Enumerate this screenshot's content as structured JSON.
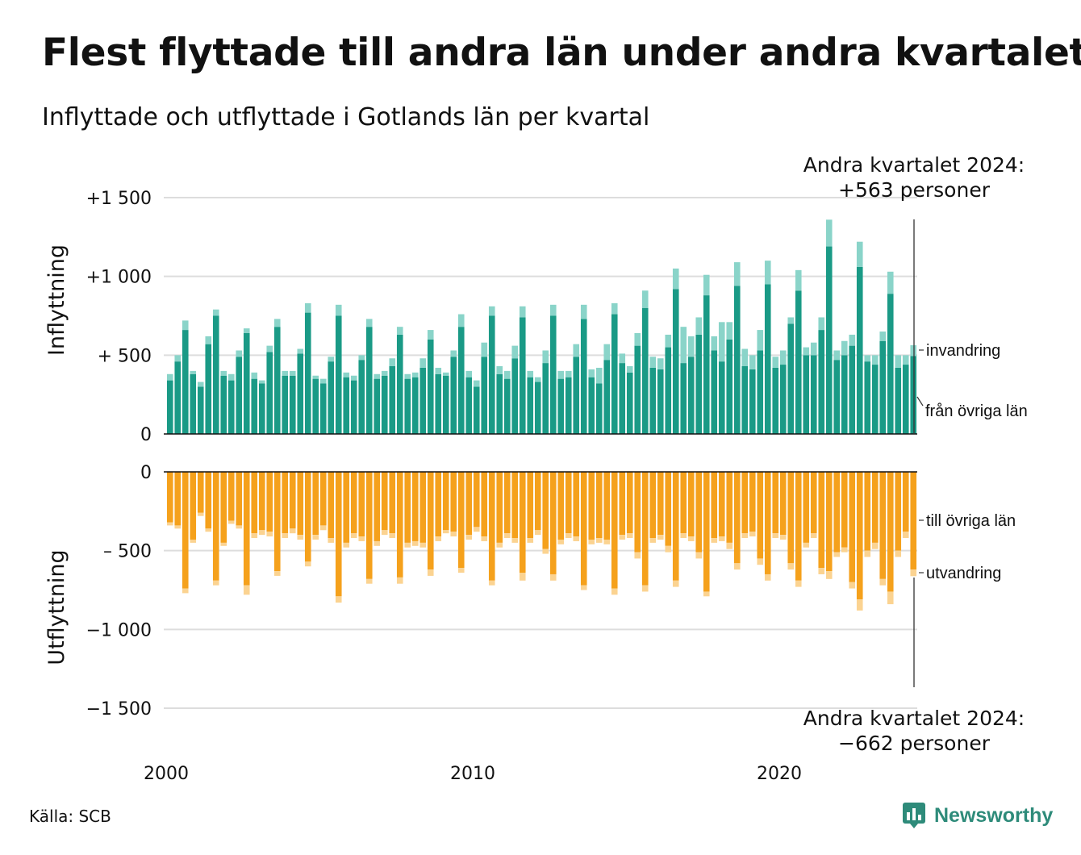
{
  "title": "Flest flyttade till andra län under andra kvartalet",
  "subtitle": "Inflyttade och utflyttade i Gotlands län per kvartal",
  "source": "Källa: SCB",
  "brand": "Newsworthy",
  "colors": {
    "in_lan": "#1a9a86",
    "in_invandring": "#8ad4c9",
    "out_lan": "#f5a11c",
    "out_utvandring": "#fbd391",
    "grid": "#dddddd",
    "brand": "#2e8b7a"
  },
  "chart_data": [
    {
      "type": "bar",
      "stacked": true,
      "ylabel": "Inflyttning",
      "ylim": [
        0,
        1500
      ],
      "yticks": [
        0,
        500,
        1000,
        1500
      ],
      "ytick_labels": [
        "0",
        "+  500",
        "+1 000",
        "+1 500"
      ],
      "xticks": [
        2000,
        2010,
        2020
      ],
      "x_start": "2000 Q1",
      "x_end": "2024 Q2",
      "series_labels": [
        "invandring",
        "från övriga län"
      ],
      "annotation": [
        "Andra kvartalet 2024:",
        "+563 personer"
      ],
      "series": [
        {
          "name": "från övriga län",
          "values": [
            340,
            460,
            660,
            380,
            300,
            570,
            750,
            370,
            340,
            490,
            640,
            350,
            320,
            520,
            680,
            370,
            370,
            510,
            770,
            350,
            320,
            460,
            750,
            360,
            340,
            470,
            680,
            350,
            370,
            430,
            630,
            350,
            360,
            420,
            600,
            380,
            370,
            490,
            680,
            360,
            300,
            490,
            750,
            380,
            350,
            480,
            740,
            360,
            330,
            450,
            750,
            350,
            360,
            490,
            730,
            360,
            320,
            470,
            760,
            450,
            390,
            560,
            800,
            420,
            410,
            550,
            920,
            450,
            490,
            630,
            880,
            530,
            460,
            600,
            940,
            430,
            410,
            530,
            950,
            420,
            440,
            700,
            910,
            500,
            500,
            660,
            1190,
            470,
            500,
            560,
            1060,
            460,
            440,
            590,
            890,
            420,
            440,
            495
          ]
        },
        {
          "name": "invandring",
          "values": [
            40,
            40,
            60,
            20,
            30,
            50,
            40,
            30,
            40,
            40,
            30,
            40,
            20,
            40,
            50,
            30,
            30,
            30,
            60,
            20,
            30,
            30,
            70,
            30,
            30,
            30,
            50,
            30,
            30,
            50,
            50,
            30,
            30,
            60,
            60,
            40,
            20,
            40,
            80,
            40,
            40,
            90,
            60,
            50,
            50,
            80,
            70,
            40,
            30,
            80,
            70,
            50,
            40,
            80,
            90,
            50,
            100,
            100,
            70,
            60,
            40,
            80,
            110,
            70,
            70,
            80,
            130,
            230,
            130,
            110,
            130,
            90,
            250,
            110,
            150,
            110,
            90,
            130,
            150,
            70,
            90,
            40,
            130,
            50,
            80,
            80,
            170,
            60,
            90,
            70,
            160,
            40,
            60,
            60,
            140,
            80,
            60,
            68
          ]
        }
      ]
    },
    {
      "type": "bar",
      "stacked": true,
      "ylabel": "Utflyttning",
      "ylim": [
        -1500,
        0
      ],
      "yticks": [
        0,
        -500,
        -1000,
        -1500
      ],
      "ytick_labels": [
        "0",
        "–  500",
        "−1 000",
        "−1 500"
      ],
      "series_labels": [
        "till övriga län",
        "utvandring"
      ],
      "annotation": [
        "Andra kvartalet 2024:",
        "−662 personer"
      ],
      "series": [
        {
          "name": "till övriga län",
          "values": [
            -320,
            -340,
            -740,
            -430,
            -260,
            -360,
            -690,
            -450,
            -310,
            -340,
            -720,
            -390,
            -370,
            -380,
            -630,
            -390,
            -360,
            -400,
            -570,
            -400,
            -340,
            -420,
            -790,
            -450,
            -390,
            -410,
            -680,
            -440,
            -370,
            -390,
            -670,
            -450,
            -440,
            -450,
            -620,
            -410,
            -370,
            -380,
            -610,
            -400,
            -350,
            -410,
            -690,
            -450,
            -390,
            -420,
            -640,
            -420,
            -370,
            -490,
            -650,
            -430,
            -390,
            -410,
            -720,
            -430,
            -420,
            -430,
            -740,
            -400,
            -390,
            -510,
            -720,
            -420,
            -400,
            -470,
            -690,
            -390,
            -410,
            -510,
            -760,
            -420,
            -410,
            -450,
            -580,
            -390,
            -380,
            -550,
            -650,
            -390,
            -400,
            -580,
            -690,
            -450,
            -390,
            -610,
            -630,
            -510,
            -480,
            -700,
            -810,
            -500,
            -450,
            -680,
            -760,
            -500,
            -380,
            -620
          ]
        },
        {
          "name": "utvandring",
          "values": [
            -20,
            -20,
            -30,
            -20,
            -20,
            -20,
            -30,
            -20,
            -20,
            -20,
            -60,
            -30,
            -30,
            -30,
            -30,
            -30,
            -30,
            -30,
            -30,
            -30,
            -30,
            -30,
            -40,
            -30,
            -30,
            -30,
            -30,
            -30,
            -30,
            -30,
            -40,
            -30,
            -30,
            -30,
            -40,
            -30,
            -20,
            -30,
            -30,
            -30,
            -30,
            -30,
            -30,
            -30,
            -30,
            -30,
            -50,
            -30,
            -30,
            -30,
            -40,
            -30,
            -30,
            -30,
            -30,
            -30,
            -30,
            -30,
            -40,
            -30,
            -30,
            -40,
            -40,
            -30,
            -30,
            -40,
            -40,
            -30,
            -30,
            -40,
            -30,
            -30,
            -30,
            -40,
            -40,
            -30,
            -30,
            -40,
            -40,
            -30,
            -30,
            -40,
            -40,
            -30,
            -30,
            -40,
            -50,
            -30,
            -30,
            -40,
            -70,
            -40,
            -40,
            -40,
            -80,
            -40,
            -40,
            -42
          ]
        }
      ]
    }
  ]
}
